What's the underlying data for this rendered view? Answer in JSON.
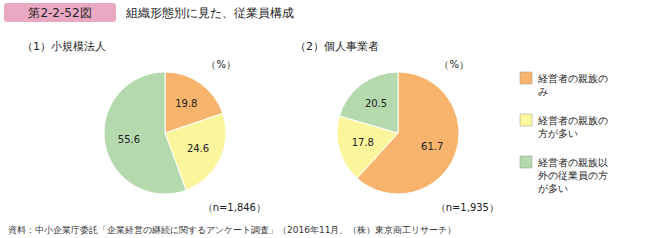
{
  "figure": {
    "number": "第2-2-52図",
    "title": "組織形態別に見た、従業員構成",
    "source": "資料：中小企業庁委託「企業経営の継続に関するアンケート調査」（2016年11月、（株）東京商工リサーチ）"
  },
  "chart_data": [
    {
      "type": "pie",
      "title": "（1）小規模法人",
      "categories": [
        "経営者の親族のみ",
        "経営者の親族の方が多い",
        "経営者の親族以外の従業員の方が多い"
      ],
      "values": [
        19.8,
        24.6,
        55.6
      ],
      "colors": [
        "#f8b46c",
        "#fbf59c",
        "#b3d9ad"
      ],
      "data_labels": true,
      "annotations": [
        "（%）",
        "（n=1,846）"
      ]
    },
    {
      "type": "pie",
      "title": "（2）個人事業者",
      "categories": [
        "経営者の親族のみ",
        "経営者の親族の方が多い",
        "経営者の親族以外の従業員の方が多い"
      ],
      "values": [
        61.7,
        17.8,
        20.5
      ],
      "colors": [
        "#f8b46c",
        "#fbf59c",
        "#b3d9ad"
      ],
      "data_labels": true,
      "legend": "right",
      "annotations": [
        "（%）",
        "（n=1,935）"
      ]
    }
  ]
}
